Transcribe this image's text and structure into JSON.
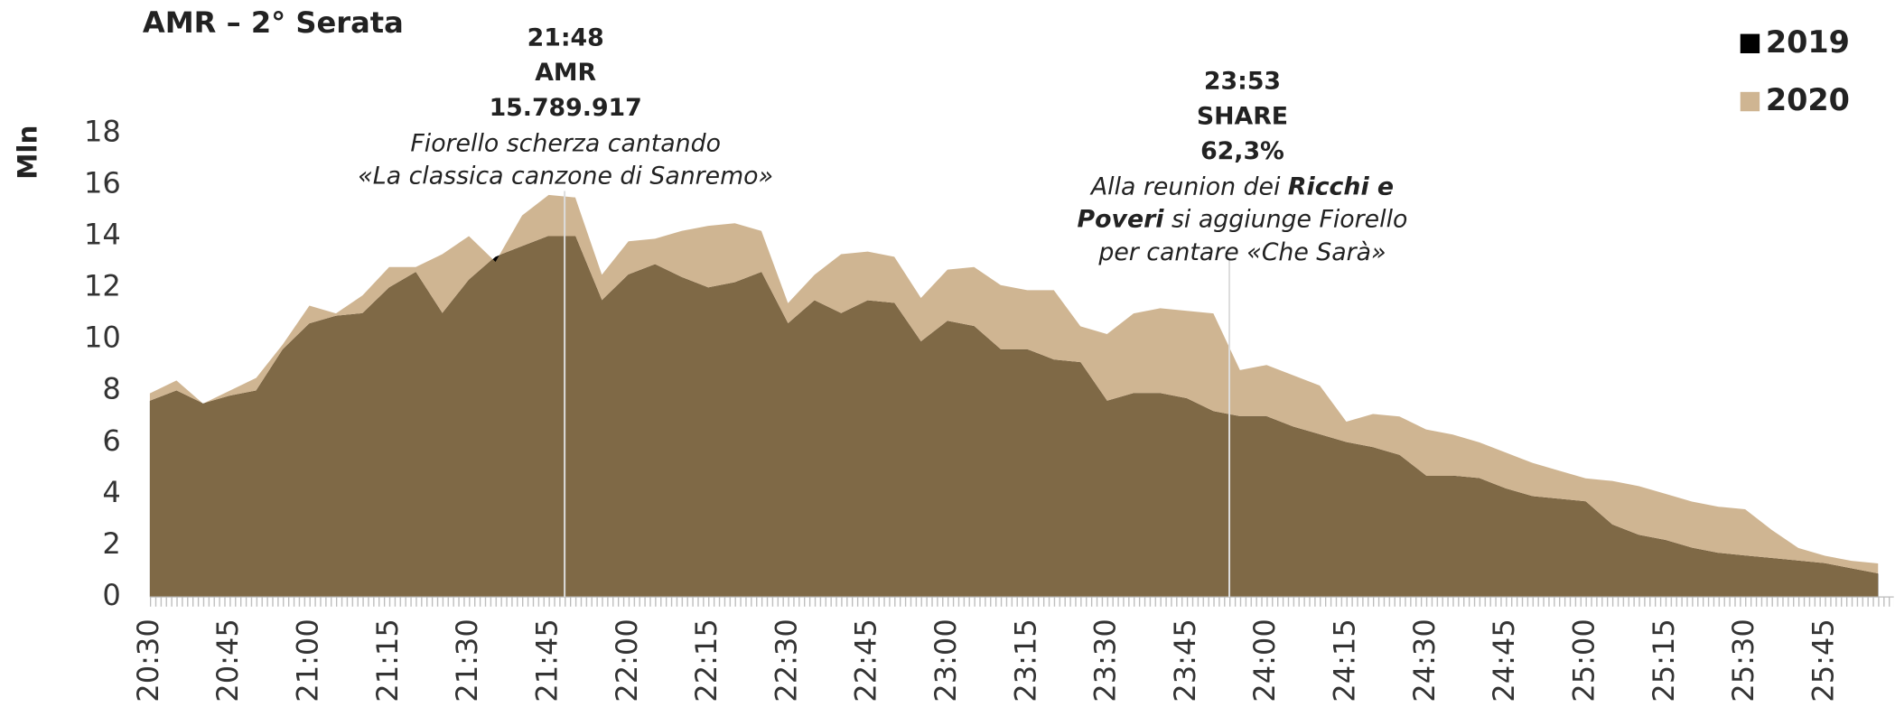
{
  "chart_data": {
    "type": "area",
    "title": "AMR – 2° Serata",
    "y_label": "Mln",
    "categories": [
      "20:30",
      null,
      null,
      "20:45",
      null,
      null,
      "21:00",
      null,
      null,
      "21:15",
      null,
      null,
      "21:30",
      null,
      null,
      "21:45",
      null,
      null,
      "22:00",
      null,
      null,
      "22:15",
      null,
      null,
      "22:30",
      null,
      null,
      "22:45",
      null,
      null,
      "23:00",
      null,
      null,
      "23:15",
      null,
      null,
      "23:30",
      null,
      null,
      "23:45",
      null,
      null,
      "24:00",
      null,
      null,
      "24:15",
      null,
      null,
      "24:30",
      null,
      null,
      "24:45",
      null,
      null,
      "25:00",
      null,
      null,
      "25:15",
      null,
      null,
      "25:30",
      null,
      null,
      "25:45",
      null,
      null
    ],
    "series": [
      {
        "name": "2019",
        "color": "#000000",
        "values": [
          7.6,
          8.0,
          7.5,
          7.8,
          8.0,
          9.6,
          10.6,
          10.9,
          11.0,
          12.0,
          12.6,
          11.0,
          12.3,
          13.2,
          13.6,
          14.0,
          14.0,
          11.5,
          12.5,
          12.9,
          12.4,
          12.0,
          12.2,
          12.6,
          10.6,
          11.5,
          11.0,
          11.5,
          11.4,
          9.9,
          10.7,
          10.5,
          9.6,
          9.6,
          9.2,
          9.1,
          7.6,
          7.9,
          7.9,
          7.7,
          7.2,
          7.0,
          7.0,
          6.6,
          6.3,
          6.0,
          5.8,
          5.5,
          4.7,
          4.7,
          4.6,
          4.2,
          3.9,
          3.8,
          3.7,
          2.8,
          2.4,
          2.2,
          1.9,
          1.7,
          1.6,
          1.5,
          1.4,
          1.3,
          1.1,
          0.9
        ]
      },
      {
        "name": "2020",
        "color": "#cfb592",
        "values": [
          7.9,
          8.4,
          7.5,
          8.0,
          8.5,
          9.8,
          11.3,
          11.0,
          11.7,
          12.8,
          12.8,
          13.3,
          14.0,
          13.0,
          14.8,
          15.6,
          15.5,
          12.5,
          13.8,
          13.9,
          14.2,
          14.4,
          14.5,
          14.2,
          11.4,
          12.5,
          13.3,
          13.4,
          13.2,
          11.6,
          12.7,
          12.8,
          12.1,
          11.9,
          11.9,
          10.5,
          10.2,
          11.0,
          11.2,
          11.1,
          11.0,
          8.8,
          9.0,
          8.6,
          8.2,
          6.8,
          7.1,
          7.0,
          6.5,
          6.3,
          6.0,
          5.6,
          5.2,
          4.9,
          4.6,
          4.5,
          4.3,
          4.0,
          3.7,
          3.5,
          3.4,
          2.6,
          1.9,
          1.6,
          1.4,
          1.3
        ]
      }
    ],
    "overlap_color": "#7f6946",
    "ylim": [
      0,
      18
    ],
    "yticks": [
      0,
      2,
      4,
      6,
      8,
      10,
      12,
      14,
      16,
      18
    ],
    "legend": "top-right",
    "annotations": [
      {
        "time": "21:48",
        "metric": "AMR",
        "value": "15.789.917",
        "note_lines": [
          [
            {
              "text": "Fiorello scherza cantando",
              "bold": false
            }
          ],
          [
            {
              "text": "«La classica canzone di Sanremo»",
              "bold": false
            }
          ]
        ]
      },
      {
        "time": "23:53",
        "metric": "SHARE",
        "value": "62,3%",
        "note_lines": [
          [
            {
              "text": "Alla reunion dei ",
              "bold": false
            },
            {
              "text": "Ricchi e",
              "bold": true
            }
          ],
          [
            {
              "text": "Poveri",
              "bold": true
            },
            {
              "text": " si aggiunge Fiorello",
              "bold": false
            }
          ],
          [
            {
              "text": "per cantare «Che Sarà»",
              "bold": false
            }
          ]
        ]
      }
    ]
  }
}
